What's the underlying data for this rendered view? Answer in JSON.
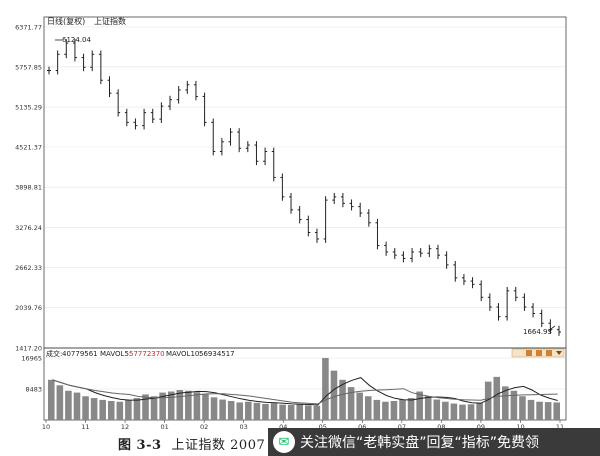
{
  "header": {
    "symbol": "日线(复权)",
    "name": "上证指数"
  },
  "volume_header": {
    "label": "成交:",
    "vol": "40779561",
    "mavol5_label": "MAVOL5:",
    "mavol5": "57772370",
    "mavol10_label": "MAVOL10:",
    "mavol10": "56934517"
  },
  "annotations": {
    "high": "6124.04",
    "low": "1664.93"
  },
  "caption": {
    "fig": "图 3-3",
    "text": "上证指数 2007 年"
  },
  "watermark": {
    "text": "关注微信“老韩实盘”回复“指标”免费领"
  },
  "colors": {
    "price": "#222222",
    "volume": "#888888",
    "ma_line": "#333333",
    "grid": "#e6e6e6",
    "watermark_bg": "#3a3a3a",
    "wechat_green": "#07c160"
  },
  "chart_data": [
    {
      "type": "line",
      "title": "",
      "series": [
        {
          "values": [
            [
              "10",
              5700
            ],
            [
              "10",
              5950
            ],
            [
              "10",
              6124
            ],
            [
              "11",
              5900
            ],
            [
              "11",
              5750
            ],
            [
              "11",
              5950
            ],
            [
              "11",
              5550
            ],
            [
              "11",
              5350
            ],
            [
              "12",
              5050
            ],
            [
              "12",
              4900
            ],
            [
              "12",
              4850
            ],
            [
              "12",
              5050
            ],
            [
              "12",
              4950
            ],
            [
              "01",
              5150
            ],
            [
              "01",
              5250
            ],
            [
              "01",
              5400
            ],
            [
              "01",
              5480
            ],
            [
              "01",
              5300
            ],
            [
              "02",
              4900
            ],
            [
              "02",
              4450
            ],
            [
              "02",
              4600
            ],
            [
              "02",
              4750
            ],
            [
              "03",
              4500
            ],
            [
              "03",
              4550
            ],
            [
              "03",
              4300
            ],
            [
              "03",
              4450
            ],
            [
              "04",
              4050
            ],
            [
              "04",
              3750
            ],
            [
              "04",
              3550
            ],
            [
              "04",
              3400
            ],
            [
              "04",
              3200
            ],
            [
              "04",
              3100
            ],
            [
              "05",
              3700
            ],
            [
              "05",
              3750
            ],
            [
              "05",
              3650
            ],
            [
              "05",
              3600
            ],
            [
              "06",
              3500
            ],
            [
              "06",
              3350
            ],
            [
              "06",
              3000
            ],
            [
              "06",
              2900
            ],
            [
              "07",
              2850
            ],
            [
              "07",
              2800
            ],
            [
              "07",
              2900
            ],
            [
              "07",
              2880
            ],
            [
              "08",
              2950
            ],
            [
              "08",
              2850
            ],
            [
              "08",
              2700
            ],
            [
              "08",
              2500
            ],
            [
              "09",
              2450
            ],
            [
              "09",
              2400
            ],
            [
              "09",
              2200
            ],
            [
              "09",
              2050
            ],
            [
              "10",
              1900
            ],
            [
              "10",
              2300
            ],
            [
              "10",
              2200
            ],
            [
              "10",
              2050
            ],
            [
              "11",
              1950
            ],
            [
              "11",
              1800
            ],
            [
              "11",
              1700
            ],
            [
              "11",
              1664.93
            ]
          ]
        }
      ],
      "ylim": [
        1417.2,
        6371.77
      ],
      "y_ticks": [
        "6371.77",
        "5757.85",
        "5135.29",
        "4521.37",
        "3898.81",
        "3276.24",
        "2662.33",
        "2039.76",
        "1417.20"
      ]
    },
    {
      "type": "bar",
      "title": "",
      "series": [
        {
          "values": [
            11000,
            9500,
            8000,
            7500,
            6500,
            6000,
            5500,
            5200,
            5000,
            5500,
            6000,
            7000,
            6500,
            7500,
            7800,
            8200,
            8000,
            7600,
            7200,
            6200,
            5600,
            5200,
            4800,
            5000,
            4700,
            4400,
            4600,
            4200,
            4100,
            4300,
            4000,
            3900,
            16965,
            13500,
            11000,
            9000,
            7500,
            6500,
            5500,
            5000,
            5200,
            5600,
            6000,
            7800,
            6500,
            5600,
            5000,
            4500,
            4200,
            4300,
            4800,
            10500,
            11800,
            9200,
            8000,
            6500,
            5500,
            5000,
            4900,
            4800
          ]
        }
      ],
      "ylim": [
        0,
        16965
      ],
      "y_ticks": [
        "16965",
        "8483"
      ],
      "x_ticks": [
        "10",
        "11",
        "12",
        "01",
        "02",
        "03",
        "04",
        "05",
        "06",
        "07",
        "08",
        "09",
        "10",
        "11"
      ]
    }
  ]
}
